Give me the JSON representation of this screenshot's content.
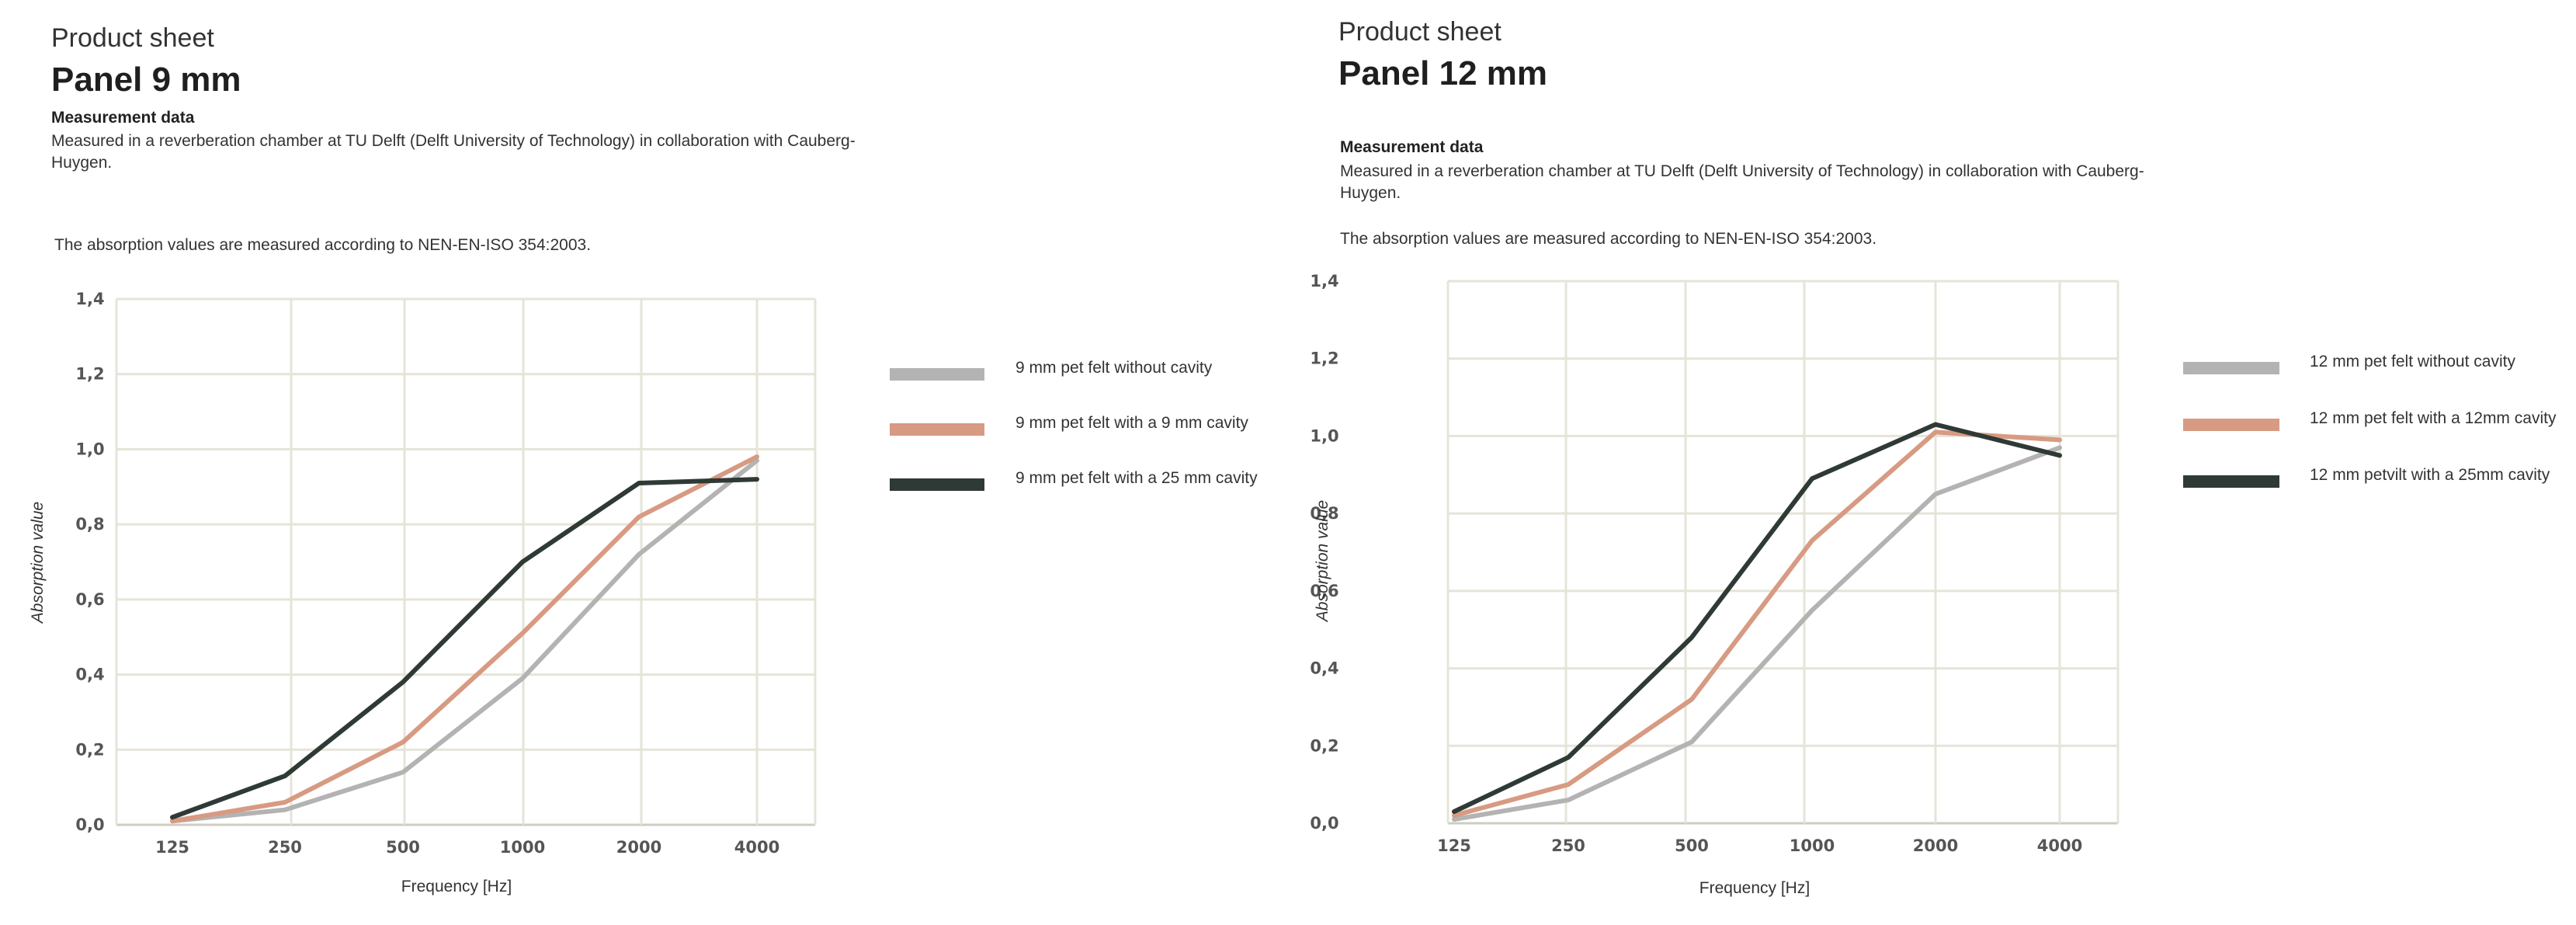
{
  "sheets": [
    {
      "overline": "Product sheet",
      "title": "Panel 9 mm",
      "measurement_heading": "Measurement data",
      "measurement_text": "Measured in a reverberation chamber at TU Delft (Delft University of Technology) in collaboration with Cauberg-Huygen.",
      "standard_note": "The absorption values are measured according to NEN-EN-ISO 354:2003."
    },
    {
      "overline": "Product sheet",
      "title": "Panel 12 mm",
      "measurement_heading": "Measurement data",
      "measurement_text": "Measured in a reverberation chamber at TU Delft (Delft University of Technology) in collaboration with Cauberg-Huygen.",
      "standard_note": "The absorption values are measured according to NEN-EN-ISO 354:2003."
    }
  ],
  "colors": {
    "grid": "#e6e4d8",
    "axis": "#cfcdc2",
    "without_cavity": "#b3b3b3",
    "small_cavity": "#d79a82",
    "large_cavity": "#2f3a36"
  },
  "chart_data": [
    {
      "type": "line",
      "title": "",
      "xlabel": "Frequency [Hz]",
      "ylabel": "Absorption value",
      "categories": [
        "125",
        "250",
        "500",
        "1000",
        "2000",
        "4000"
      ],
      "ylim": [
        0,
        1.4
      ],
      "yticks": [
        "0,0",
        "0,2",
        "0,4",
        "0,6",
        "0,8",
        "1,0",
        "1,2",
        "1,4"
      ],
      "grid": true,
      "legend_position": "right",
      "series": [
        {
          "name": "9 mm pet felt without cavity",
          "color": "#b3b3b3",
          "values": [
            0.01,
            0.04,
            0.14,
            0.39,
            0.72,
            0.97
          ]
        },
        {
          "name": "9 mm pet felt with a 9 mm cavity",
          "color": "#d79a82",
          "values": [
            0.01,
            0.06,
            0.22,
            0.51,
            0.82,
            0.98
          ]
        },
        {
          "name": "9 mm pet felt with a 25 mm cavity",
          "color": "#2f3a36",
          "values": [
            0.02,
            0.13,
            0.38,
            0.7,
            0.91,
            0.92
          ]
        }
      ]
    },
    {
      "type": "line",
      "title": "",
      "xlabel": "Frequency [Hz]",
      "ylabel": "Absorption value",
      "categories": [
        "125",
        "250",
        "500",
        "1000",
        "2000",
        "4000"
      ],
      "ylim": [
        0,
        1.4
      ],
      "yticks": [
        "0,0",
        "0,2",
        "0,4",
        "0,6",
        "0,8",
        "1,0",
        "1,2",
        "1,4"
      ],
      "grid": true,
      "legend_position": "right",
      "series": [
        {
          "name": "12 mm pet felt without cavity",
          "color": "#b3b3b3",
          "values": [
            0.01,
            0.06,
            0.21,
            0.55,
            0.85,
            0.97
          ]
        },
        {
          "name": "12 mm pet felt with a 12mm cavity",
          "color": "#d79a82",
          "values": [
            0.02,
            0.1,
            0.32,
            0.73,
            1.01,
            0.99
          ]
        },
        {
          "name": "12 mm petvilt with a 25mm cavity",
          "color": "#2f3a36",
          "values": [
            0.03,
            0.17,
            0.48,
            0.89,
            1.03,
            0.95
          ]
        }
      ]
    }
  ]
}
